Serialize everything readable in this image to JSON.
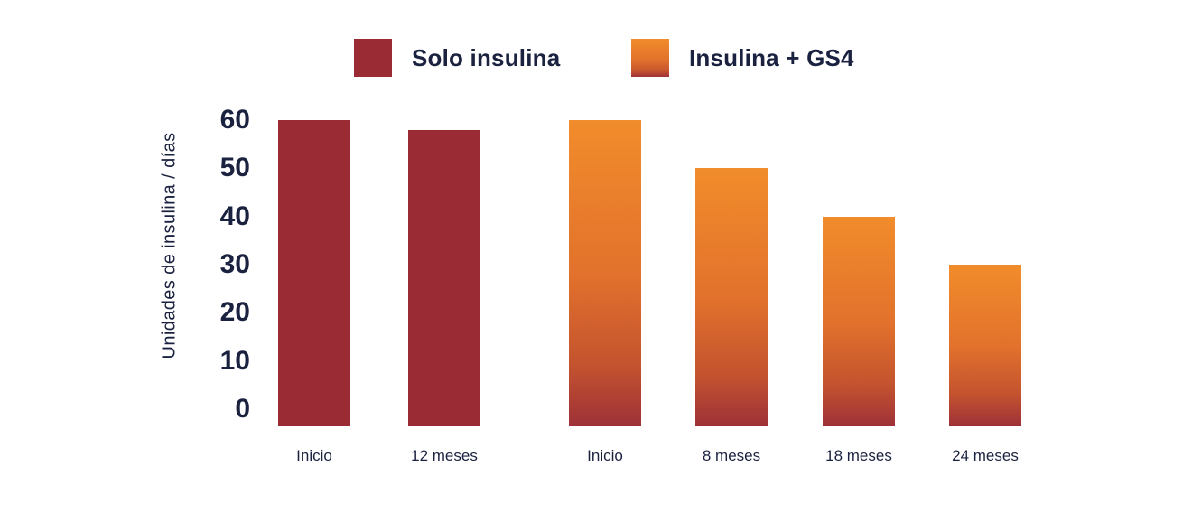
{
  "colors": {
    "background": "#ffffff",
    "text_navy": "#1a2240",
    "solo_insulina_red": "#9a2a33",
    "orange_top": "#f18c2b",
    "orange_mid": "#e2722c",
    "orange_deep": "#c4532f",
    "orange_bottom": "#9e3138"
  },
  "chart_data": {
    "type": "bar",
    "title": "",
    "xlabel": "",
    "ylabel": "Unidades de insulina / días",
    "ylim": [
      0,
      60
    ],
    "yticks": [
      60,
      50,
      40,
      30,
      20,
      10,
      0
    ],
    "grid": false,
    "legend_position": "top",
    "legend": [
      {
        "label": "Solo insulina",
        "color": "#9a2a33",
        "style": "solid"
      },
      {
        "label": "Insulina + GS4",
        "gradient_top": "#f18c2b",
        "gradient_bottom": "#9e3138",
        "style": "gradient"
      }
    ],
    "bars": [
      {
        "category": "Inicio",
        "series": "Solo insulina",
        "value": 60
      },
      {
        "category": "12 meses",
        "series": "Solo insulina",
        "value": 58
      },
      {
        "category": "Inicio",
        "series": "Insulina + GS4",
        "value": 60
      },
      {
        "category": "8 meses",
        "series": "Insulina + GS4",
        "value": 50
      },
      {
        "category": "18 meses",
        "series": "Insulina + GS4",
        "value": 40
      },
      {
        "category": "24 meses",
        "series": "Insulina + GS4",
        "value": 30
      }
    ]
  }
}
